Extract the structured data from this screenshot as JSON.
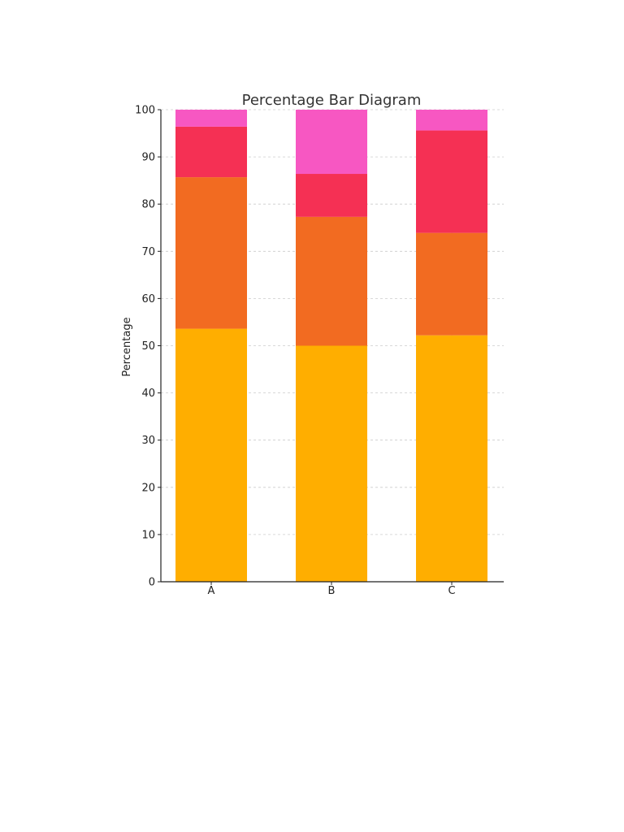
{
  "chart_data": {
    "type": "bar",
    "stacked": true,
    "title": "Percentage Bar Diagram",
    "xlabel": "",
    "ylabel": "Percentage",
    "categories": [
      "A",
      "B",
      "C"
    ],
    "ylim": [
      0,
      100
    ],
    "yticks": [
      "0",
      "10",
      "20",
      "30",
      "40",
      "50",
      "60",
      "70",
      "80",
      "90",
      "100"
    ],
    "grid": true,
    "series": [
      {
        "values": [
          53.6,
          50.0,
          52.2
        ],
        "color": "#FFAE00"
      },
      {
        "values": [
          32.1,
          27.3,
          21.7
        ],
        "color": "#F26B21"
      },
      {
        "values": [
          10.7,
          9.1,
          21.7
        ],
        "color": "#F53054"
      },
      {
        "values": [
          3.6,
          13.6,
          4.4
        ],
        "color": "#F757C2"
      }
    ]
  }
}
